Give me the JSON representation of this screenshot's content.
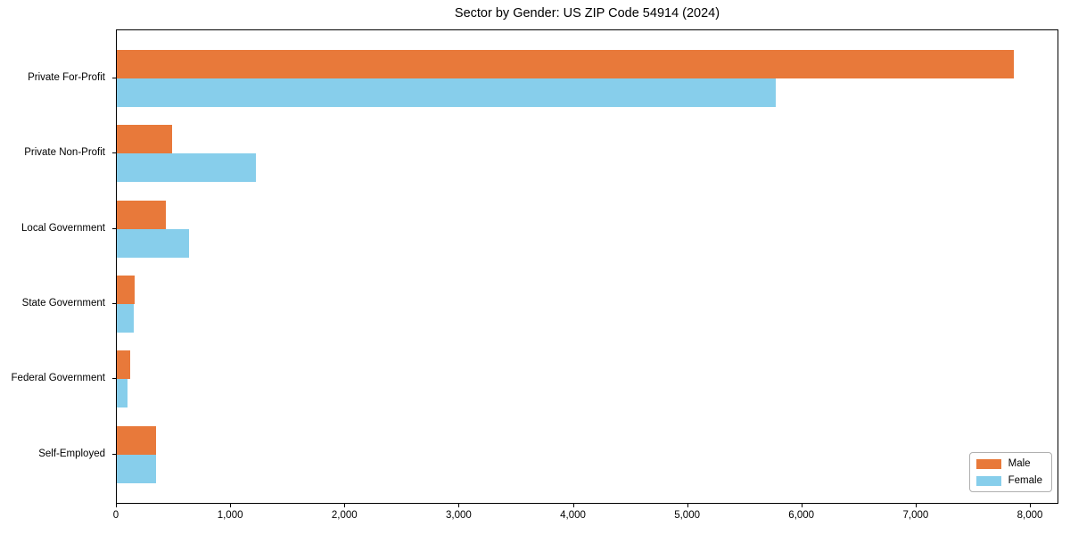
{
  "chart_data": {
    "type": "bar",
    "orientation": "horizontal",
    "title": "Sector by Gender: US ZIP Code 54914 (2024)",
    "categories": [
      "Private For-Profit",
      "Private Non-Profit",
      "Local Government",
      "State Government",
      "Federal Government",
      "Self-Employed"
    ],
    "series": [
      {
        "name": "Male",
        "color": "#e8793a",
        "values": [
          7850,
          480,
          430,
          155,
          115,
          345
        ]
      },
      {
        "name": "Female",
        "color": "#87ceeb",
        "values": [
          5770,
          1220,
          630,
          145,
          95,
          345
        ]
      }
    ],
    "xlabel": "",
    "ylabel": "",
    "xlim": [
      0,
      8250
    ],
    "x_ticks": [
      {
        "value": 0,
        "label": "0"
      },
      {
        "value": 1000,
        "label": "1,000"
      },
      {
        "value": 2000,
        "label": "2,000"
      },
      {
        "value": 3000,
        "label": "3,000"
      },
      {
        "value": 4000,
        "label": "4,000"
      },
      {
        "value": 5000,
        "label": "5,000"
      },
      {
        "value": 6000,
        "label": "6,000"
      },
      {
        "value": 7000,
        "label": "7,000"
      },
      {
        "value": 8000,
        "label": "8,000"
      }
    ],
    "grid": false,
    "legend": {
      "position": "lower right",
      "entries": [
        "Male",
        "Female"
      ]
    }
  }
}
